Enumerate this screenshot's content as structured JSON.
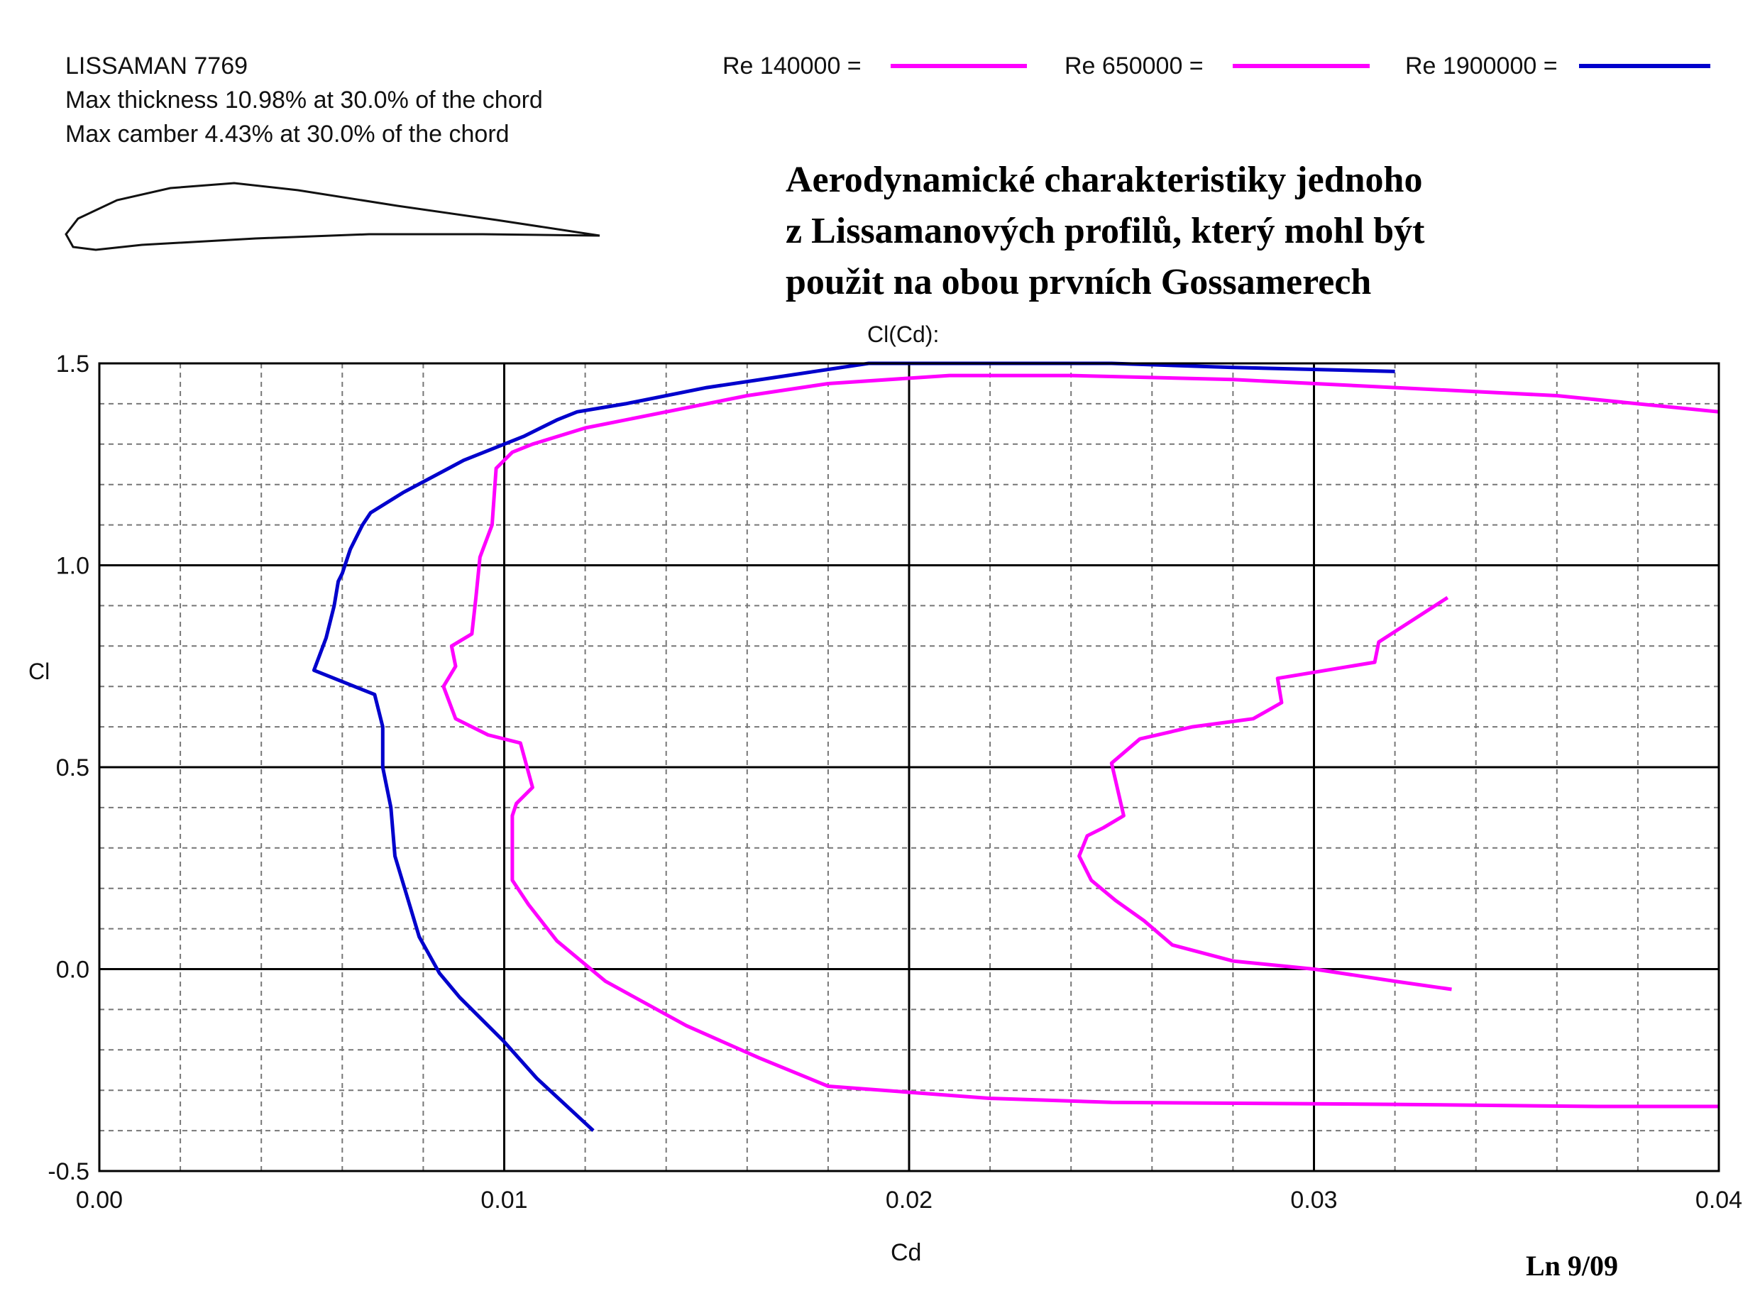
{
  "airfoil": {
    "name": "LISSAMAN 7769",
    "thickness_text": "Max thickness 10.98% at 30.0% of the chord",
    "camber_text": "Max camber 4.43% at 30.0% of the chord"
  },
  "annotation": {
    "title_lines": [
      "Aerodynamické charakteristiky jednoho",
      "z Lissamanových profilů, který mohl být",
      "použit na obou prvních Gossamerech"
    ],
    "footer": "Ln 9/09"
  },
  "legend": [
    {
      "label": "Re 140000 =",
      "color": "#ff00ff"
    },
    {
      "label": "Re 650000 =",
      "color": "#ff00ff"
    },
    {
      "label": "Re 1900000 =",
      "color": "#0000cc"
    }
  ],
  "chart_data": {
    "type": "line",
    "title": "Cl(Cd):",
    "xlabel": "Cd",
    "ylabel": "Cl",
    "xlim": [
      0.0,
      0.04
    ],
    "ylim": [
      -0.5,
      1.5
    ],
    "xticks": [
      "0.00",
      "0.01",
      "0.02",
      "0.03",
      "0.04"
    ],
    "yticks": [
      "1.5",
      "1.0",
      "0.5",
      "0.0",
      "-0.5"
    ],
    "grid": true,
    "series": [
      {
        "name": "Re 140000",
        "color": "#ff00ff",
        "x": [
          0.0334,
          0.032,
          0.03,
          0.028,
          0.0265,
          0.0258,
          0.0251,
          0.0245,
          0.0242,
          0.0244,
          0.0248,
          0.0253,
          0.025,
          0.0257,
          0.027,
          0.0285,
          0.0292,
          0.0291,
          0.0315,
          0.0316,
          0.0333
        ],
        "y": [
          -0.05,
          -0.03,
          0.0,
          0.02,
          0.06,
          0.12,
          0.17,
          0.22,
          0.28,
          0.33,
          0.35,
          0.38,
          0.51,
          0.57,
          0.6,
          0.62,
          0.66,
          0.72,
          0.76,
          0.81,
          0.92
        ]
      },
      {
        "name": "Re 650000",
        "color": "#ff00ff",
        "x": [
          0.04,
          0.037,
          0.032,
          0.025,
          0.022,
          0.018,
          0.0163,
          0.0145,
          0.0125,
          0.0113,
          0.0106,
          0.0102,
          0.0102,
          0.0103,
          0.0107,
          0.0104,
          0.0096,
          0.0088,
          0.0085,
          0.0088,
          0.0087,
          0.0092,
          0.0093,
          0.0094,
          0.0097,
          0.0098,
          0.0102,
          0.0107,
          0.012,
          0.014,
          0.016,
          0.018,
          0.021,
          0.024,
          0.028,
          0.032,
          0.036,
          0.04
        ],
        "y": [
          -0.34,
          -0.34,
          -0.335,
          -0.33,
          -0.32,
          -0.29,
          -0.22,
          -0.14,
          -0.03,
          0.07,
          0.16,
          0.22,
          0.38,
          0.41,
          0.45,
          0.56,
          0.58,
          0.62,
          0.7,
          0.75,
          0.8,
          0.83,
          0.92,
          1.02,
          1.1,
          1.24,
          1.28,
          1.3,
          1.34,
          1.38,
          1.42,
          1.45,
          1.47,
          1.47,
          1.46,
          1.44,
          1.42,
          1.38
        ]
      },
      {
        "name": "Re 1900000",
        "color": "#0000cc",
        "x": [
          0.0122,
          0.0108,
          0.01,
          0.0089,
          0.0084,
          0.0079,
          0.0073,
          0.0072,
          0.007,
          0.007,
          0.0068,
          0.0053,
          0.0056,
          0.0058,
          0.0059,
          0.006,
          0.0062,
          0.0065,
          0.0067,
          0.0075,
          0.009,
          0.0105,
          0.0113,
          0.0118,
          0.013,
          0.015,
          0.017,
          0.019,
          0.021,
          0.025,
          0.028,
          0.032
        ],
        "y": [
          -0.4,
          -0.27,
          -0.18,
          -0.07,
          -0.01,
          0.08,
          0.28,
          0.4,
          0.5,
          0.6,
          0.68,
          0.74,
          0.82,
          0.9,
          0.96,
          0.98,
          1.04,
          1.1,
          1.13,
          1.18,
          1.26,
          1.32,
          1.36,
          1.38,
          1.4,
          1.44,
          1.47,
          1.5,
          1.5,
          1.5,
          1.49,
          1.48
        ]
      }
    ]
  }
}
